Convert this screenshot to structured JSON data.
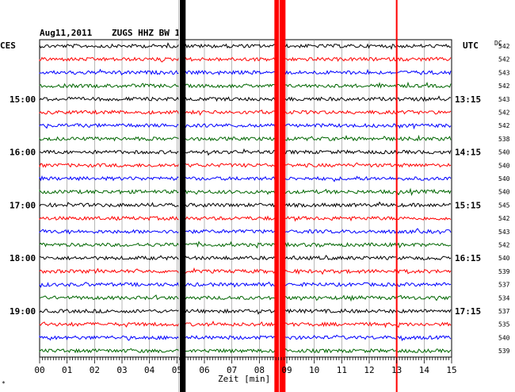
{
  "header": {
    "date": "Aug11,2011",
    "station": "ZUGS HHZ BW 1",
    "left_tz": "CES",
    "right_tz": "UTC",
    "dc_label": "DC"
  },
  "left_time_labels": [
    "15:00",
    "16:00",
    "17:00",
    "18:00",
    "19:00"
  ],
  "right_time_labels": [
    "13:15",
    "14:15",
    "15:15",
    "16:15",
    "17:15"
  ],
  "dc_values": [
    "542",
    "542",
    "543",
    "542",
    "543",
    "542",
    "542",
    "538",
    "540",
    "540",
    "540",
    "540",
    "545",
    "542",
    "543",
    "542",
    "540",
    "539",
    "537",
    "534",
    "537",
    "535",
    "540",
    "539"
  ],
  "trace_colors": [
    "#000000",
    "#ff0000",
    "#0000ff",
    "#006600"
  ],
  "x_axis": {
    "tick_labels": [
      "00",
      "01",
      "02",
      "03",
      "04",
      "05",
      "06",
      "07",
      "08",
      "09",
      "10",
      "11",
      "12",
      "13",
      "14",
      "15"
    ],
    "label": "Zeit [min]",
    "range_min": [
      0,
      15
    ]
  },
  "events": [
    {
      "minute": 5.2,
      "color": "#000000",
      "kind": "black-saturation"
    },
    {
      "minute": 8.75,
      "color": "#ff0000",
      "kind": "red-saturation"
    },
    {
      "minute": 13.0,
      "color": "#ff0000",
      "kind": "red-line"
    }
  ],
  "corner_mark": "*"
}
